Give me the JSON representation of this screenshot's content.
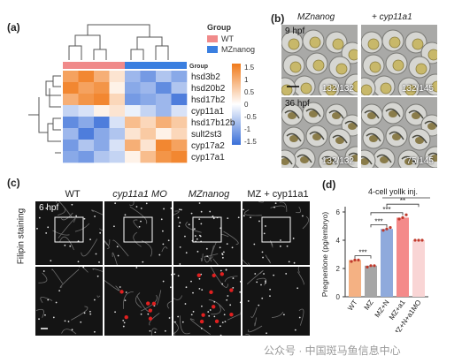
{
  "panels": {
    "a": {
      "letter": "(a)",
      "legend_title": "Group",
      "legend_items": [
        {
          "label": "WT",
          "color": "#f08a8a"
        },
        {
          "label": "MZnanog",
          "color": "#3a7fe0"
        }
      ],
      "group_bar_label": "Group",
      "genes": [
        "hsd3b2",
        "hsd20b2",
        "hsd17b2",
        "cyp11a1",
        "hsd17b12b",
        "sult2st3",
        "cyp17a2",
        "cyp17a1"
      ],
      "scale_ticks": [
        "1.5",
        "1",
        "0.5",
        "0",
        "-0.5",
        "-1",
        "-1.5"
      ],
      "heat_colors": {
        "high": "#f07a1a",
        "mid": "#ffffff",
        "low": "#3a6fd8"
      }
    },
    "b": {
      "letter": "(b)",
      "col_titles": [
        "MZnanog",
        "+ cyp11a1"
      ],
      "row_times": [
        "9 hpf",
        "36 hpf"
      ],
      "ratios": [
        "132/132",
        "132/145",
        "132/132",
        "75/145"
      ]
    },
    "c": {
      "letter": "(c)",
      "col_titles": [
        "WT",
        "cyp11a1 MO",
        "MZnanog",
        "MZ + cyp11a1"
      ],
      "row_label": "Filipin staining",
      "time": "6 hpf"
    },
    "d": {
      "letter": "(d)",
      "injection_label": "4-cell yollk inj.",
      "ylabel": "Pregnenlone (pg/embryo)",
      "yticks": [
        "0",
        "2",
        "4",
        "6"
      ],
      "categories": [
        "WT",
        "MZ",
        "MZ+N",
        "MZ+a1",
        "MZ+N+a1MO"
      ],
      "significance": [
        "***",
        "***",
        "***",
        "**"
      ]
    }
  },
  "watermark": "公众号 · 中国斑马鱼信息中心",
  "chart_data": {
    "type": "bar",
    "categories": [
      "WT",
      "MZ",
      "MZ+N",
      "MZ+a1",
      "MZ+N+a1MO"
    ],
    "values": [
      2.6,
      2.2,
      4.8,
      5.6,
      4.0
    ],
    "points": [
      [
        2.5,
        2.6,
        2.6
      ],
      [
        2.1,
        2.2,
        2.2
      ],
      [
        4.7,
        4.8,
        4.9
      ],
      [
        5.5,
        5.6,
        5.8
      ],
      [
        4.0,
        4.0,
        4.0
      ]
    ],
    "colors": [
      "#f4b183",
      "#a6a6a6",
      "#8faadc",
      "#f48a8a",
      "#f9d5d5"
    ],
    "ylabel": "Pregnenlone (pg/embryo)",
    "ylim": [
      0,
      6
    ],
    "title": ""
  }
}
